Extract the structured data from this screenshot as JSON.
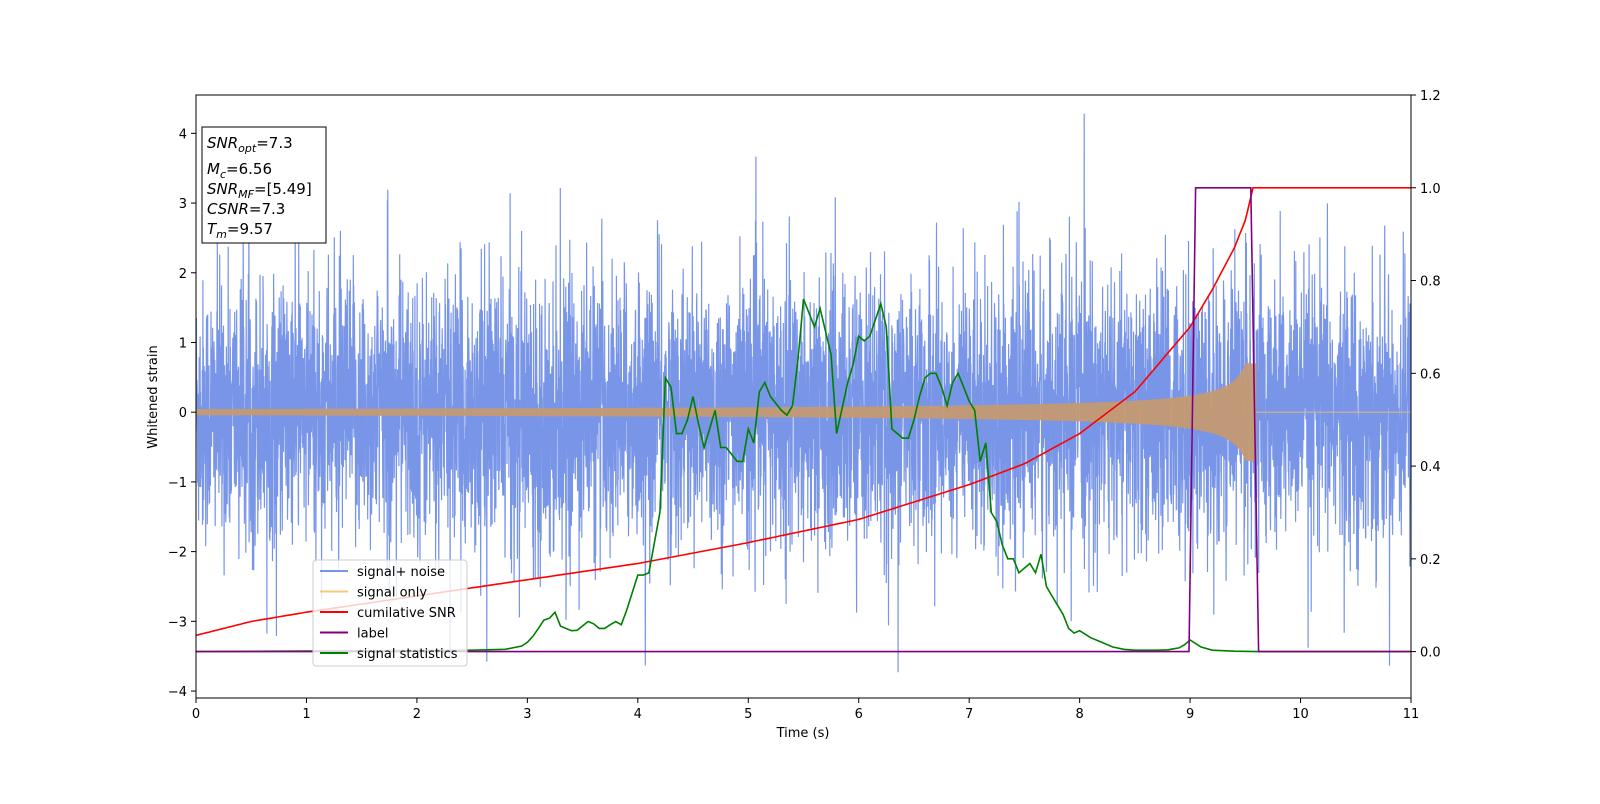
{
  "chart_data": {
    "type": "line",
    "xlabel": "Time (s)",
    "ylabel": "Whitened strain",
    "xlim": [
      0,
      11
    ],
    "ylim": [
      -4.1,
      4.55
    ],
    "y2lim": [
      -0.1,
      1.2
    ],
    "x_ticks": [
      "0",
      "1",
      "2",
      "3",
      "4",
      "5",
      "6",
      "7",
      "8",
      "9",
      "10",
      "11"
    ],
    "y_ticks": [
      "−4",
      "−3",
      "−2",
      "−1",
      "0",
      "1",
      "2",
      "3",
      "4"
    ],
    "y2_ticks": [
      "0.0",
      "0.2",
      "0.4",
      "0.6",
      "0.8",
      "1.0",
      "1.2"
    ],
    "grid": false,
    "legend_position": "lower-left",
    "annotation": {
      "snr_opt": {
        "base": "SNR",
        "sub": "opt",
        "value": "=7.3"
      },
      "mc": {
        "base": "M",
        "sub": "c",
        "value": "=6.56"
      },
      "snr_mf": {
        "base": "SNR",
        "sub": "MF",
        "value": "=[5.49]"
      },
      "csnr": {
        "base": "CSNR",
        "value": "=7.3"
      },
      "tm": {
        "base": "T",
        "sub": "m",
        "value": "=9.57"
      }
    },
    "series": [
      {
        "name": "signal+ noise",
        "color": "#7895e8",
        "axis": "left",
        "description_values": {
          "std": 0.95,
          "t_start": 0,
          "t_end": 11
        }
      },
      {
        "name": "signal only",
        "color": "#f5c87a",
        "axis": "left",
        "description_values": {
          "t_merger": 9.6,
          "amp_max": 0.7
        }
      },
      {
        "name": "cumilative SNR",
        "color": "#ff0000",
        "axis": "right",
        "x": [
          0,
          0.5,
          1,
          2,
          3,
          4,
          5,
          6,
          7,
          7.5,
          8,
          8.5,
          9,
          9.2,
          9.4,
          9.5,
          9.57,
          11
        ],
        "values": [
          0.035,
          0.065,
          0.085,
          0.12,
          0.155,
          0.19,
          0.235,
          0.285,
          0.36,
          0.405,
          0.47,
          0.56,
          0.7,
          0.78,
          0.87,
          0.93,
          1.0,
          1.0
        ]
      },
      {
        "name": "label",
        "color": "#800080",
        "axis": "right",
        "x": [
          0,
          8.99,
          9.05,
          9.55,
          9.62,
          11
        ],
        "values": [
          0,
          0,
          1,
          1,
          0,
          0
        ]
      },
      {
        "name": "signal statistics",
        "color": "#008000",
        "axis": "right",
        "x": [
          0,
          2.5,
          2.8,
          2.95,
          3.0,
          3.05,
          3.1,
          3.15,
          3.2,
          3.25,
          3.3,
          3.4,
          3.45,
          3.55,
          3.6,
          3.65,
          3.7,
          3.75,
          3.8,
          3.85,
          3.9,
          4.0,
          4.05,
          4.1,
          4.2,
          4.25,
          4.3,
          4.35,
          4.4,
          4.45,
          4.5,
          4.55,
          4.6,
          4.7,
          4.75,
          4.8,
          4.9,
          4.95,
          5.0,
          5.05,
          5.1,
          5.15,
          5.2,
          5.3,
          5.35,
          5.4,
          5.45,
          5.5,
          5.6,
          5.65,
          5.75,
          5.8,
          5.9,
          5.95,
          6.0,
          6.05,
          6.1,
          6.2,
          6.25,
          6.3,
          6.35,
          6.4,
          6.45,
          6.5,
          6.55,
          6.6,
          6.65,
          6.7,
          6.75,
          6.8,
          6.85,
          6.9,
          6.95,
          7.0,
          7.05,
          7.1,
          7.15,
          7.2,
          7.25,
          7.3,
          7.35,
          7.4,
          7.45,
          7.5,
          7.55,
          7.6,
          7.65,
          7.7,
          7.75,
          7.8,
          7.85,
          7.9,
          7.95,
          8.0,
          8.1,
          8.2,
          8.3,
          8.4,
          8.5,
          8.6,
          8.7,
          8.8,
          8.85,
          8.9,
          8.95,
          9.0,
          9.1,
          9.2,
          9.4,
          9.6,
          11
        ],
        "values": [
          0.0,
          0.003,
          0.005,
          0.012,
          0.02,
          0.033,
          0.05,
          0.068,
          0.072,
          0.085,
          0.055,
          0.045,
          0.046,
          0.065,
          0.06,
          0.05,
          0.05,
          0.058,
          0.065,
          0.058,
          0.09,
          0.165,
          0.165,
          0.17,
          0.3,
          0.59,
          0.57,
          0.47,
          0.47,
          0.5,
          0.55,
          0.49,
          0.44,
          0.52,
          0.44,
          0.44,
          0.41,
          0.41,
          0.48,
          0.45,
          0.56,
          0.58,
          0.55,
          0.52,
          0.51,
          0.53,
          0.63,
          0.76,
          0.7,
          0.74,
          0.64,
          0.47,
          0.58,
          0.62,
          0.68,
          0.67,
          0.68,
          0.75,
          0.7,
          0.48,
          0.47,
          0.46,
          0.46,
          0.5,
          0.55,
          0.59,
          0.6,
          0.6,
          0.57,
          0.53,
          0.58,
          0.6,
          0.57,
          0.54,
          0.52,
          0.41,
          0.45,
          0.3,
          0.28,
          0.23,
          0.2,
          0.2,
          0.17,
          0.18,
          0.19,
          0.17,
          0.21,
          0.14,
          0.12,
          0.1,
          0.08,
          0.05,
          0.04,
          0.045,
          0.03,
          0.02,
          0.01,
          0.005,
          0.003,
          0.003,
          0.003,
          0.004,
          0.006,
          0.008,
          0.015,
          0.025,
          0.01,
          0.003,
          0.001,
          0.0,
          0.0
        ]
      }
    ]
  }
}
